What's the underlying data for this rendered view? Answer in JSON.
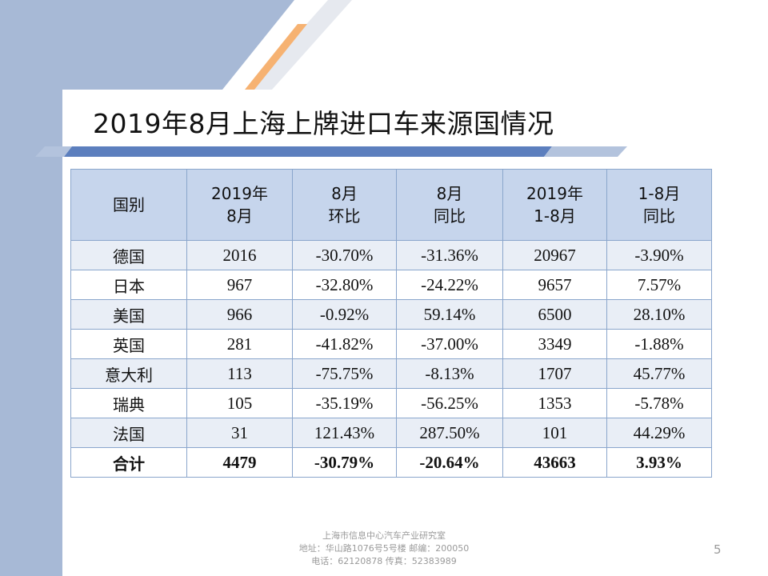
{
  "slide": {
    "title": "2019年8月上海上牌进口车来源国情况",
    "page_number": "5"
  },
  "table": {
    "headers": [
      {
        "line1": "国别",
        "line2": ""
      },
      {
        "line1": "2019年",
        "line2": "8月"
      },
      {
        "line1": "8月",
        "line2": "环比"
      },
      {
        "line1": "8月",
        "line2": "同比"
      },
      {
        "line1": "2019年",
        "line2": "1-8月"
      },
      {
        "line1": "1-8月",
        "line2": "同比"
      }
    ],
    "rows": [
      [
        "德国",
        "2016",
        "-30.70%",
        "-31.36%",
        "20967",
        "-3.90%"
      ],
      [
        "日本",
        "967",
        "-32.80%",
        "-24.22%",
        "9657",
        "7.57%"
      ],
      [
        "美国",
        "966",
        "-0.92%",
        "59.14%",
        "6500",
        "28.10%"
      ],
      [
        "英国",
        "281",
        "-41.82%",
        "-37.00%",
        "3349",
        "-1.88%"
      ],
      [
        "意大利",
        "113",
        "-75.75%",
        "-8.13%",
        "1707",
        "45.77%"
      ],
      [
        "瑞典",
        "105",
        "-35.19%",
        "-56.25%",
        "1353",
        "-5.78%"
      ],
      [
        "法国",
        "31",
        "121.43%",
        "287.50%",
        "101",
        "44.29%"
      ],
      [
        "合计",
        "4479",
        "-30.79%",
        "-20.64%",
        "43663",
        "3.93%"
      ]
    ]
  },
  "footer": {
    "line1": "上海市信息中心汽车产业研究室",
    "line2": "地址：华山路1076号5号楼    邮编：200050",
    "line3": "电话：62120878  传真：52383989"
  },
  "colors": {
    "side_band": "#a7b9d6",
    "header_fill": "#c6d5ec",
    "row_band": "#e9eef6",
    "accent_orange": "#f6b272",
    "title_rule": "#5c7fbe"
  }
}
